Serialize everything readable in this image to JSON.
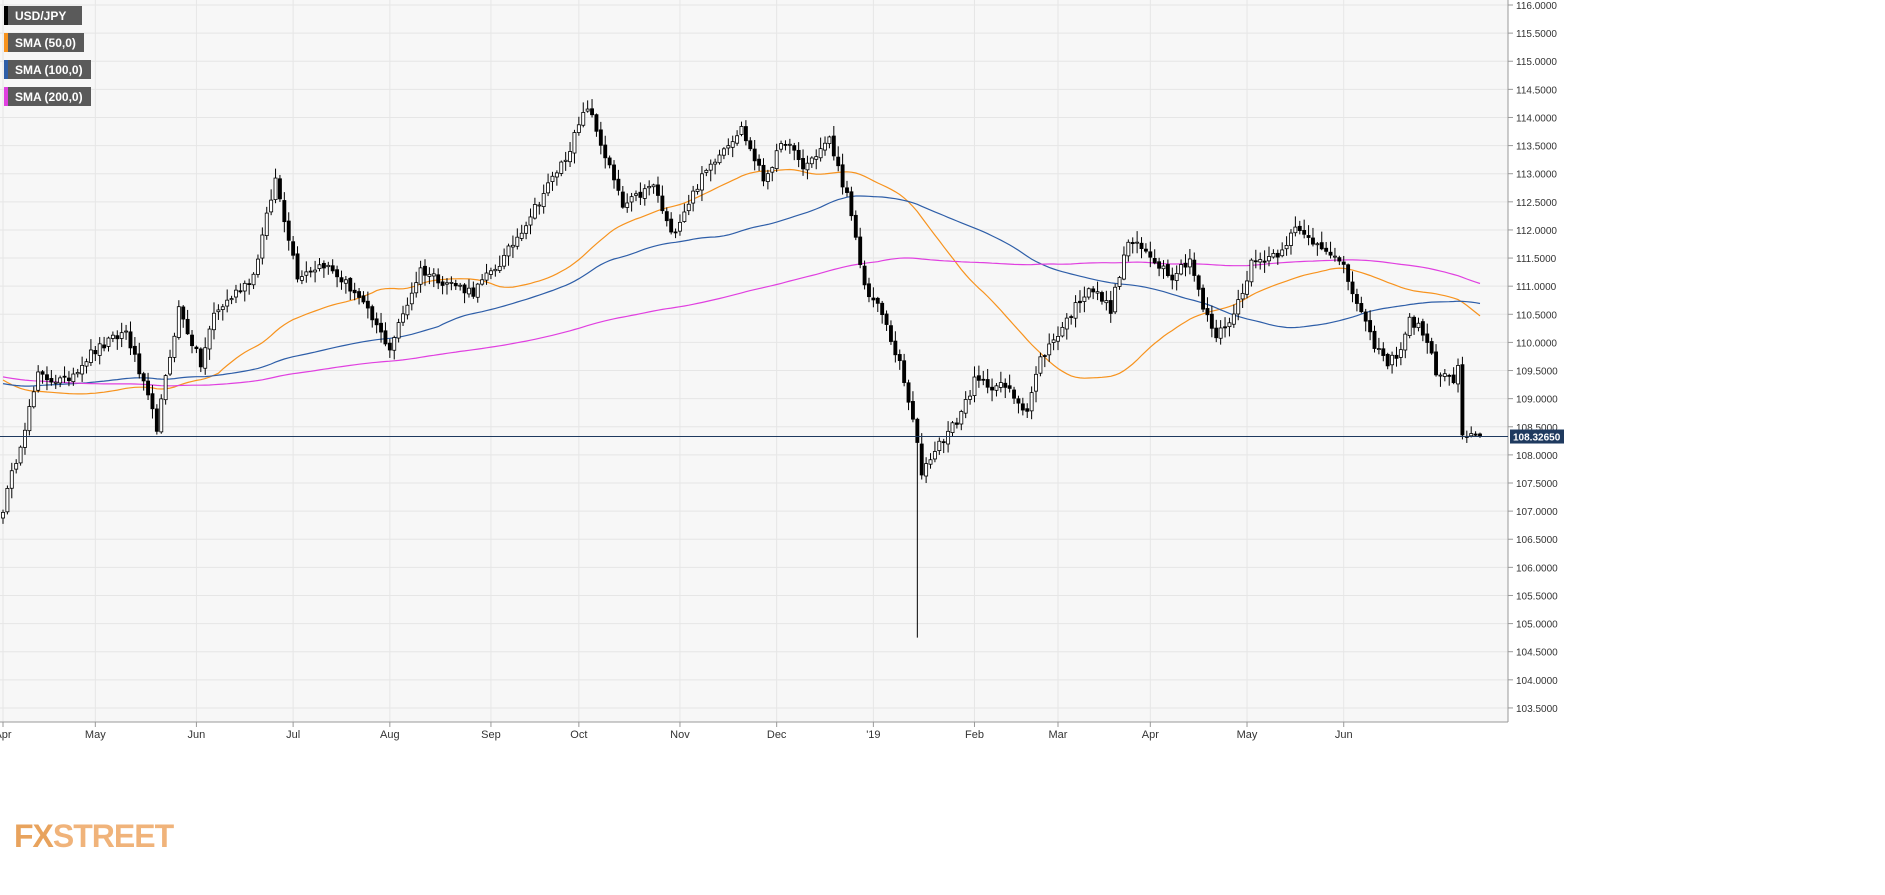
{
  "chart_data": {
    "type": "candlestick",
    "symbol": "USD/JPY",
    "timeframe": "daily",
    "legend": [
      {
        "label": "USD/JPY",
        "color": "#000000"
      },
      {
        "label": "SMA (50,0)",
        "color": "#f7931e"
      },
      {
        "label": "SMA (100,0)",
        "color": "#2e5ea8"
      },
      {
        "label": "SMA (200,0)",
        "color": "#e040e0"
      }
    ],
    "ylim": [
      103.25,
      116.0
    ],
    "y_ticks": [
      "116.0000",
      "115.5000",
      "115.0000",
      "114.5000",
      "114.0000",
      "113.5000",
      "113.0000",
      "112.5000",
      "112.0000",
      "111.5000",
      "111.0000",
      "110.5000",
      "110.0000",
      "109.5000",
      "109.0000",
      "108.5000",
      "108.0000",
      "107.5000",
      "107.0000",
      "106.5000",
      "106.0000",
      "105.5000",
      "105.0000",
      "104.5000",
      "104.0000",
      "103.5000"
    ],
    "x_labels": [
      "Apr",
      "May",
      "Jun",
      "Jul",
      "Aug",
      "Sep",
      "Oct",
      "Nov",
      "Dec",
      "'19",
      "Feb",
      "Mar",
      "Apr",
      "May",
      "Jun"
    ],
    "current_price": 108.3265,
    "current_price_label": "108.32650",
    "price_anchors": [
      [
        0,
        107.05
      ],
      [
        8,
        109.4
      ],
      [
        14,
        109.3
      ],
      [
        20,
        109.8
      ],
      [
        28,
        110.2
      ],
      [
        35,
        108.5
      ],
      [
        40,
        110.6
      ],
      [
        45,
        109.6
      ],
      [
        48,
        110.5
      ],
      [
        57,
        111.2
      ],
      [
        62,
        112.9
      ],
      [
        67,
        111.2
      ],
      [
        73,
        111.4
      ],
      [
        80,
        110.9
      ],
      [
        88,
        109.9
      ],
      [
        95,
        111.3
      ],
      [
        100,
        111.1
      ],
      [
        107,
        110.9
      ],
      [
        114,
        111.5
      ],
      [
        121,
        112.4
      ],
      [
        128,
        113.3
      ],
      [
        133,
        114.2
      ],
      [
        138,
        113.1
      ],
      [
        141,
        112.4
      ],
      [
        148,
        112.8
      ],
      [
        152,
        111.9
      ],
      [
        158,
        112.8
      ],
      [
        163,
        113.4
      ],
      [
        168,
        113.8
      ],
      [
        173,
        112.9
      ],
      [
        178,
        113.6
      ],
      [
        182,
        113.1
      ],
      [
        188,
        113.6
      ],
      [
        192,
        112.6
      ],
      [
        196,
        111.0
      ],
      [
        200,
        110.5
      ],
      [
        204,
        109.6
      ],
      [
        207,
        108.6
      ],
      [
        209,
        107.7
      ],
      [
        212,
        108.1
      ],
      [
        217,
        108.6
      ],
      [
        221,
        109.3
      ],
      [
        228,
        109.2
      ],
      [
        233,
        108.8
      ],
      [
        236,
        109.7
      ],
      [
        242,
        110.4
      ],
      [
        247,
        111.0
      ],
      [
        252,
        110.6
      ],
      [
        256,
        111.8
      ],
      [
        260,
        111.6
      ],
      [
        266,
        111.2
      ],
      [
        270,
        111.5
      ],
      [
        273,
        110.6
      ],
      [
        276,
        110.1
      ],
      [
        280,
        110.5
      ],
      [
        284,
        111.4
      ],
      [
        290,
        111.6
      ],
      [
        294,
        112.0
      ],
      [
        298,
        111.8
      ],
      [
        301,
        111.7
      ],
      [
        305,
        111.3
      ],
      [
        308,
        110.7
      ],
      [
        311,
        110.1
      ],
      [
        315,
        109.6
      ],
      [
        318,
        109.9
      ],
      [
        320,
        110.4
      ],
      [
        323,
        110.2
      ],
      [
        326,
        109.5
      ],
      [
        330,
        109.3
      ],
      [
        331,
        109.6
      ],
      [
        332,
        108.3
      ],
      [
        336,
        108.3
      ]
    ],
    "total_bars": 337,
    "x_label_bars": [
      0,
      21,
      44,
      66,
      88,
      111,
      131,
      154,
      176,
      198,
      221,
      240,
      261,
      283,
      305
    ],
    "series": [
      {
        "name": "USD/JPY",
        "type": "candlestick"
      },
      {
        "name": "SMA (50,0)",
        "period": 50
      },
      {
        "name": "SMA (100,0)",
        "period": 100
      },
      {
        "name": "SMA (200,0)",
        "period": 200
      }
    ],
    "grid": true,
    "legend_position": "top-left"
  },
  "watermark": {
    "fx": "FX",
    "street": "STREET"
  }
}
